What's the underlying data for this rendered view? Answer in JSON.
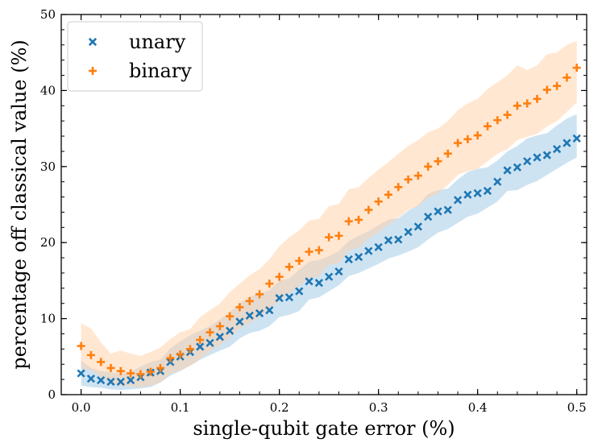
{
  "chart_data": {
    "type": "scatter",
    "title": "",
    "xlabel": "single-qubit gate error (%)",
    "ylabel": "percentage off classical value (%)",
    "xlim": [
      -0.02,
      0.51
    ],
    "ylim": [
      0,
      50
    ],
    "x_ticks": [
      0.0,
      0.1,
      0.2,
      0.3,
      0.4,
      0.5
    ],
    "x_tick_labels": [
      "0.0",
      "0.1",
      "0.2",
      "0.3",
      "0.4",
      "0.5"
    ],
    "y_ticks": [
      0,
      10,
      20,
      30,
      40,
      50
    ],
    "y_tick_labels": [
      "0",
      "10",
      "20",
      "30",
      "40",
      "50"
    ],
    "grid": false,
    "legend_position": "top-left",
    "x": [
      0.0,
      0.01,
      0.02,
      0.03,
      0.04,
      0.05,
      0.06,
      0.07,
      0.08,
      0.09,
      0.1,
      0.11,
      0.12,
      0.13,
      0.14,
      0.15,
      0.16,
      0.17,
      0.18,
      0.19,
      0.2,
      0.21,
      0.22,
      0.23,
      0.24,
      0.25,
      0.26,
      0.27,
      0.28,
      0.29,
      0.3,
      0.31,
      0.32,
      0.33,
      0.34,
      0.35,
      0.36,
      0.37,
      0.38,
      0.39,
      0.4,
      0.41,
      0.42,
      0.43,
      0.44,
      0.45,
      0.46,
      0.47,
      0.48,
      0.49,
      0.5
    ],
    "series": [
      {
        "name": "unary",
        "marker": "x",
        "color": "#1f77b4",
        "band_color": "#9ec8e6",
        "values": [
          2.8,
          2.1,
          1.9,
          1.7,
          1.7,
          1.9,
          2.3,
          2.9,
          3.1,
          4.3,
          5.0,
          5.6,
          6.3,
          6.8,
          7.6,
          8.4,
          9.6,
          10.4,
          10.7,
          11.1,
          12.7,
          12.8,
          13.6,
          14.9,
          14.7,
          15.5,
          16.2,
          17.8,
          18.1,
          18.9,
          19.4,
          20.3,
          20.4,
          21.4,
          22.1,
          23.4,
          24.1,
          24.3,
          25.6,
          26.3,
          26.5,
          26.8,
          28.0,
          29.5,
          29.9,
          30.7,
          31.2,
          31.5,
          32.3,
          33.1,
          33.7
        ],
        "lower": [
          1.2,
          1.0,
          0.9,
          0.7,
          0.6,
          0.7,
          0.8,
          1.0,
          1.6,
          2.5,
          3.1,
          3.8,
          4.6,
          5.2,
          5.8,
          6.3,
          7.4,
          8.1,
          8.4,
          9.0,
          10.2,
          10.5,
          11.0,
          12.5,
          12.8,
          13.6,
          14.4,
          15.6,
          16.0,
          16.6,
          17.2,
          17.9,
          18.3,
          18.8,
          19.4,
          20.4,
          21.3,
          21.8,
          22.6,
          23.4,
          23.8,
          24.6,
          25.4,
          26.8,
          26.9,
          27.6,
          28.1,
          28.9,
          29.7,
          30.5,
          31.2
        ],
        "upper": [
          4.5,
          3.5,
          3.1,
          2.9,
          2.8,
          3.0,
          3.7,
          4.3,
          4.6,
          6.1,
          7.0,
          7.8,
          8.4,
          9.0,
          9.9,
          10.9,
          12.0,
          12.9,
          13.3,
          13.7,
          15.0,
          15.3,
          16.4,
          17.5,
          17.7,
          18.2,
          18.9,
          20.2,
          20.9,
          21.5,
          22.3,
          23.0,
          23.2,
          24.2,
          24.9,
          26.4,
          26.9,
          27.1,
          28.3,
          29.3,
          29.7,
          29.9,
          30.8,
          32.0,
          32.7,
          33.7,
          34.1,
          34.4,
          35.4,
          36.3,
          36.9
        ]
      },
      {
        "name": "binary",
        "marker": "+",
        "color": "#ff7f0e",
        "band_color": "#ffcfa6",
        "values": [
          6.4,
          5.2,
          4.3,
          3.5,
          3.1,
          2.8,
          2.7,
          3.0,
          3.5,
          4.8,
          5.3,
          6.0,
          7.2,
          8.2,
          9.0,
          10.3,
          11.5,
          12.3,
          13.2,
          14.6,
          15.5,
          16.8,
          17.6,
          18.8,
          19.0,
          20.7,
          20.9,
          22.8,
          23.0,
          24.3,
          25.4,
          26.3,
          27.3,
          28.3,
          28.8,
          30.0,
          30.7,
          31.7,
          33.1,
          33.6,
          34.1,
          35.3,
          36.1,
          36.8,
          38.0,
          38.3,
          38.9,
          40.1,
          40.6,
          41.7,
          43.0
        ],
        "lower": [
          3.5,
          3.2,
          2.3,
          1.6,
          1.2,
          1.1,
          1.0,
          1.2,
          1.6,
          2.7,
          3.2,
          3.8,
          4.7,
          5.7,
          6.5,
          7.5,
          8.7,
          9.4,
          10.2,
          11.3,
          12.3,
          13.4,
          14.3,
          15.3,
          15.6,
          17.1,
          17.3,
          19.0,
          19.3,
          20.5,
          21.4,
          22.3,
          23.3,
          24.3,
          24.8,
          25.8,
          26.5,
          27.6,
          28.9,
          29.4,
          29.7,
          30.7,
          31.7,
          32.3,
          33.5,
          33.9,
          34.3,
          35.3,
          36.0,
          37.2,
          38.4
        ],
        "upper": [
          9.4,
          8.7,
          6.9,
          5.4,
          5.8,
          5.4,
          5.1,
          5.6,
          6.2,
          7.3,
          8.2,
          8.6,
          10.2,
          11.1,
          12.0,
          13.5,
          14.6,
          15.7,
          16.5,
          17.8,
          19.5,
          20.7,
          21.6,
          22.9,
          23.1,
          24.8,
          25.1,
          27.0,
          27.3,
          28.5,
          29.6,
          30.6,
          31.7,
          32.7,
          33.5,
          34.5,
          35.0,
          36.0,
          37.4,
          38.3,
          38.9,
          40.2,
          41.1,
          42.0,
          43.3,
          42.7,
          43.3,
          44.8,
          45.0,
          46.0,
          46.5
        ]
      }
    ]
  }
}
